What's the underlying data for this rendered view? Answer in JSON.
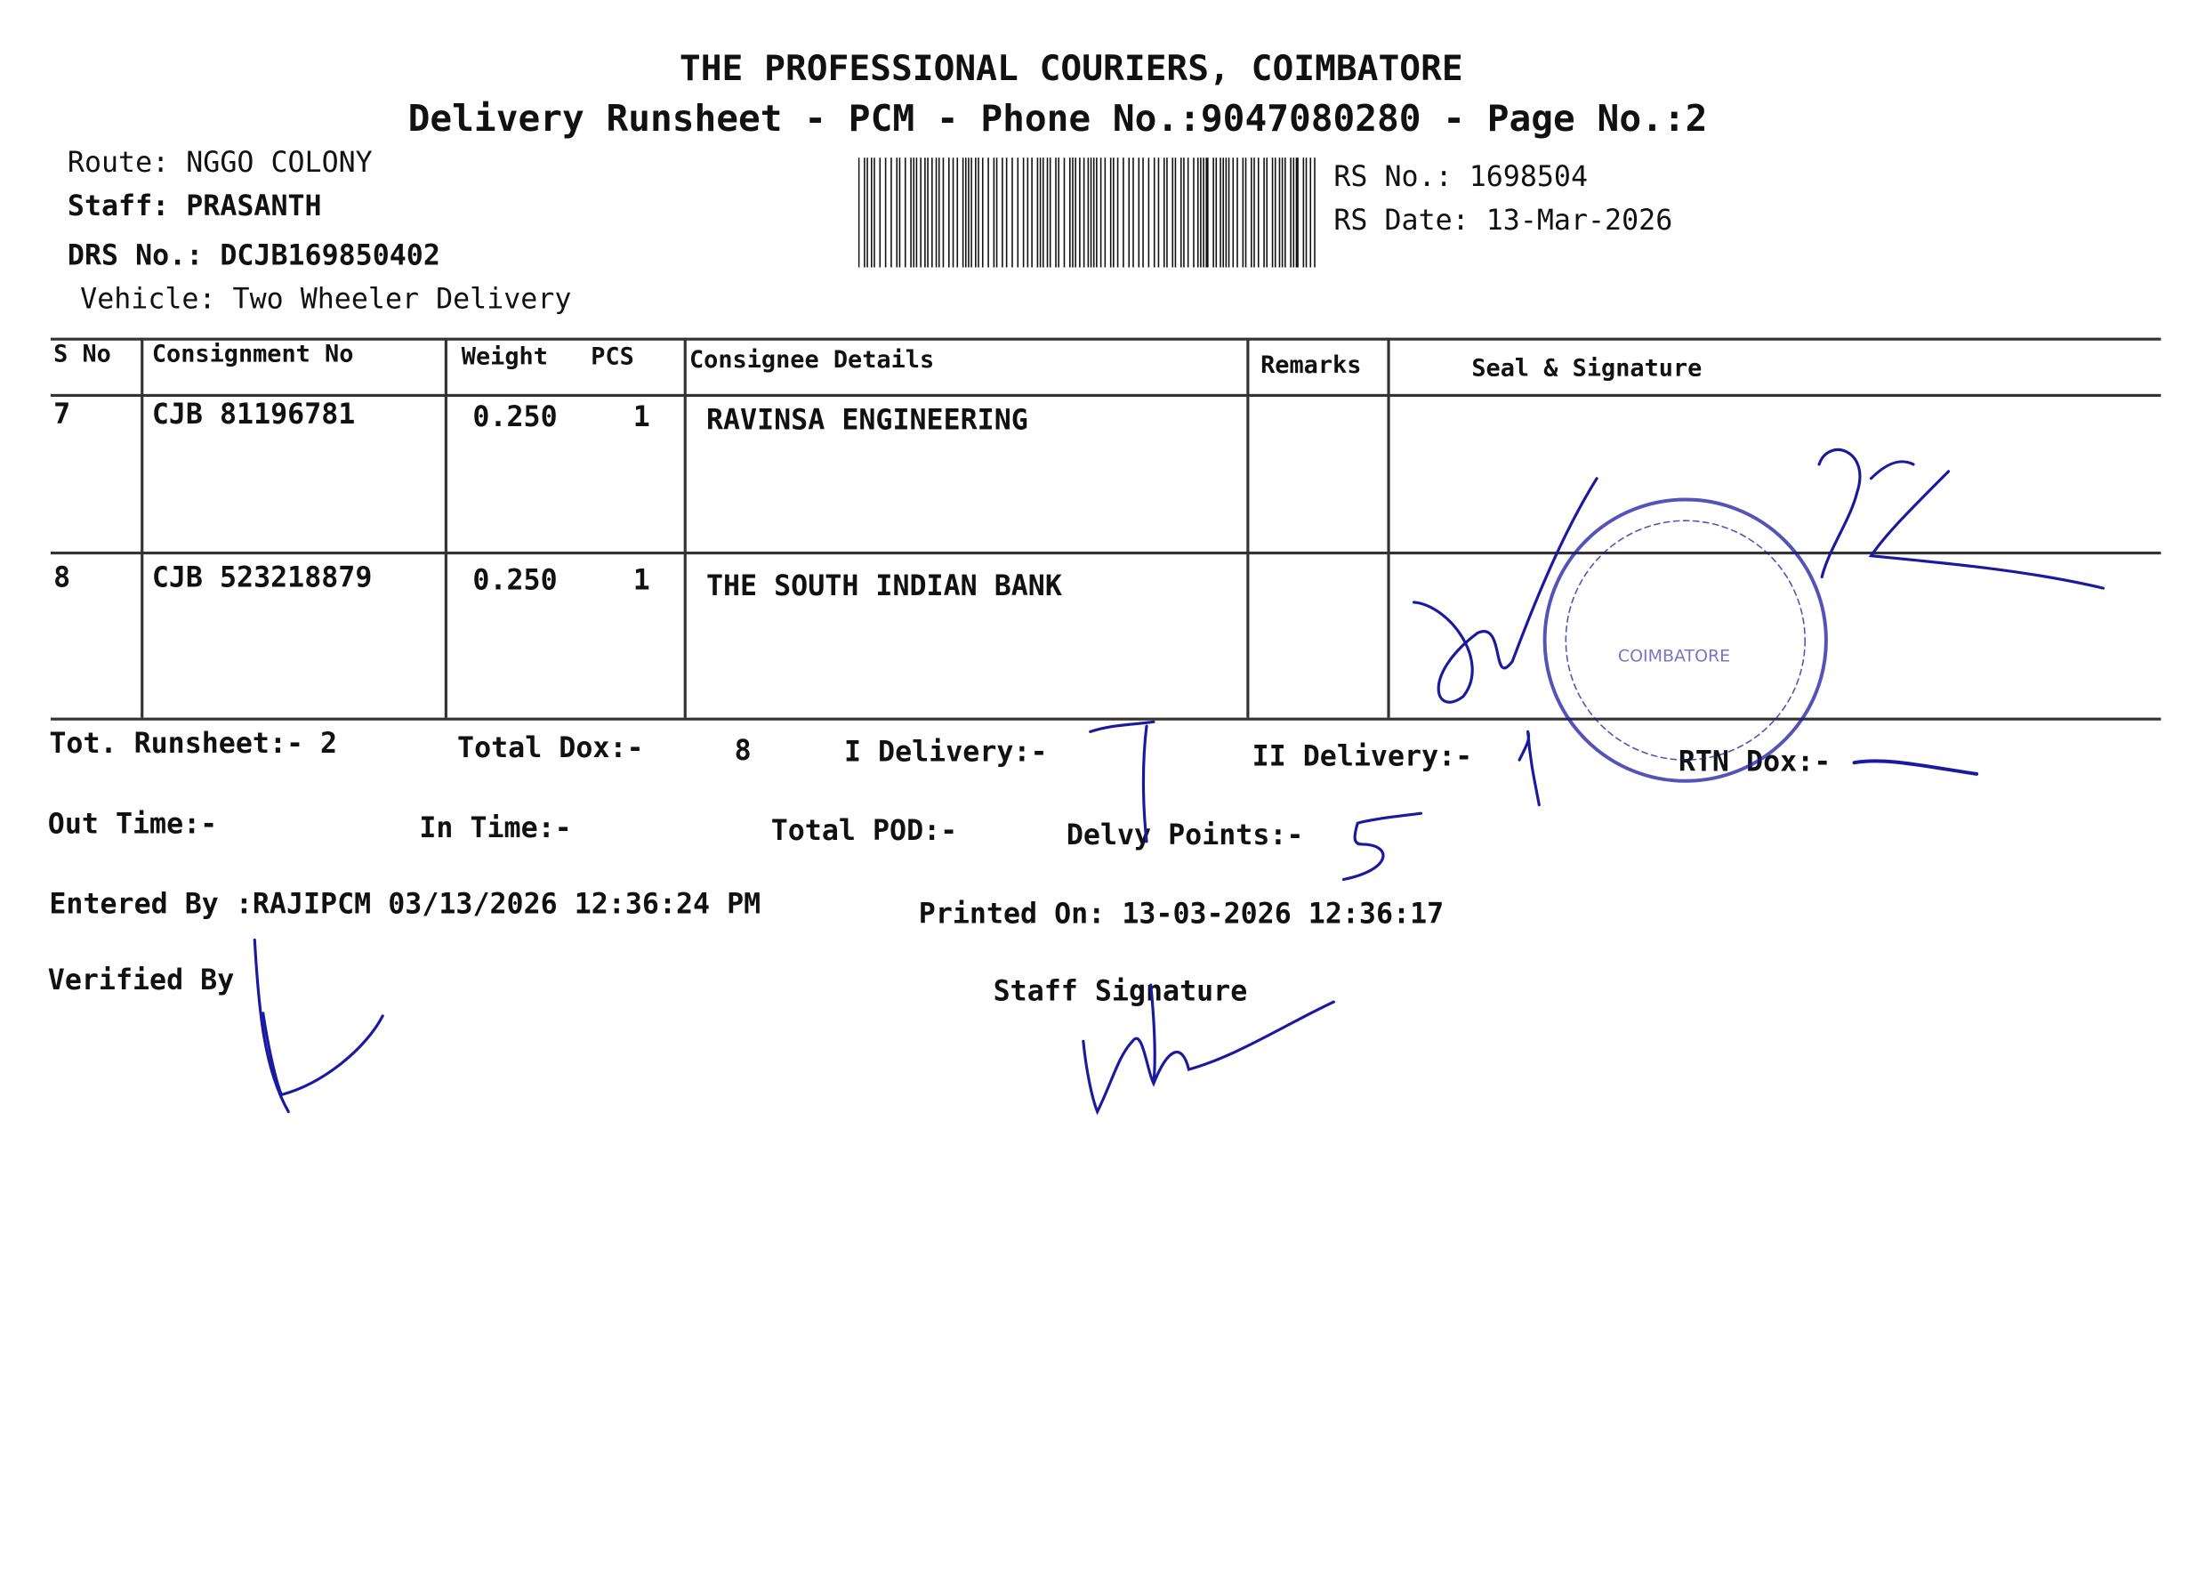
{
  "header": {
    "company": "THE PROFESSIONAL COURIERS, COIMBATORE",
    "subtitle": "Delivery Runsheet - PCM - Phone No.:9047080280 - Page No.:2"
  },
  "info": {
    "route": "Route: NGGO COLONY",
    "staff": "Staff: PRASANTH",
    "drs": "DRS No.: DCJB169850402",
    "vehicle": "Vehicle: Two Wheeler Delivery",
    "rs_no": "RS No.: 1698504",
    "rs_date": "RS Date: 13-Mar-2026"
  },
  "table": {
    "headers": [
      "S No",
      "Consignment No",
      "Weight",
      "PCS",
      "Consignee Details",
      "Remarks",
      "Seal & Signature"
    ],
    "rows": [
      {
        "sno": "7",
        "consignment": "CJB 81196781",
        "weight": "0.250",
        "pcs": "1",
        "consignee": "RAVINSA ENGINEERING",
        "remarks": ""
      },
      {
        "sno": "8",
        "consignment": "CJB 523218879",
        "weight": "0.250",
        "pcs": "1",
        "consignee": "THE SOUTH INDIAN BANK",
        "remarks": ""
      }
    ]
  },
  "summary": {
    "tot_runsheet": "Tot. Runsheet:- 2",
    "total_dox_label": "Total Dox:-",
    "total_dox_value": "8",
    "i_delivery": "I Delivery:-",
    "i_delivery_handwritten": "7",
    "ii_delivery": "II Delivery:-",
    "ii_delivery_handwritten": "1",
    "rtn_dox": "RTN Dox:-",
    "out_time": "Out Time:-",
    "in_time": "In Time:-",
    "total_pod": "Total POD:-",
    "delvy_points": "Delvy Points:-",
    "delvy_points_handwritten": "5",
    "entered_by": "Entered By :RAJIPCM 03/13/2026 12:36:24 PM",
    "printed_on": "Printed On: 13-03-2026 12:36:17",
    "verified_by": "Verified By",
    "staff_signature": "Staff Signature"
  },
  "stamp": {
    "text": "COIMBATORE"
  },
  "colors": {
    "ink": "#1a1aa0",
    "print": "#111111"
  }
}
